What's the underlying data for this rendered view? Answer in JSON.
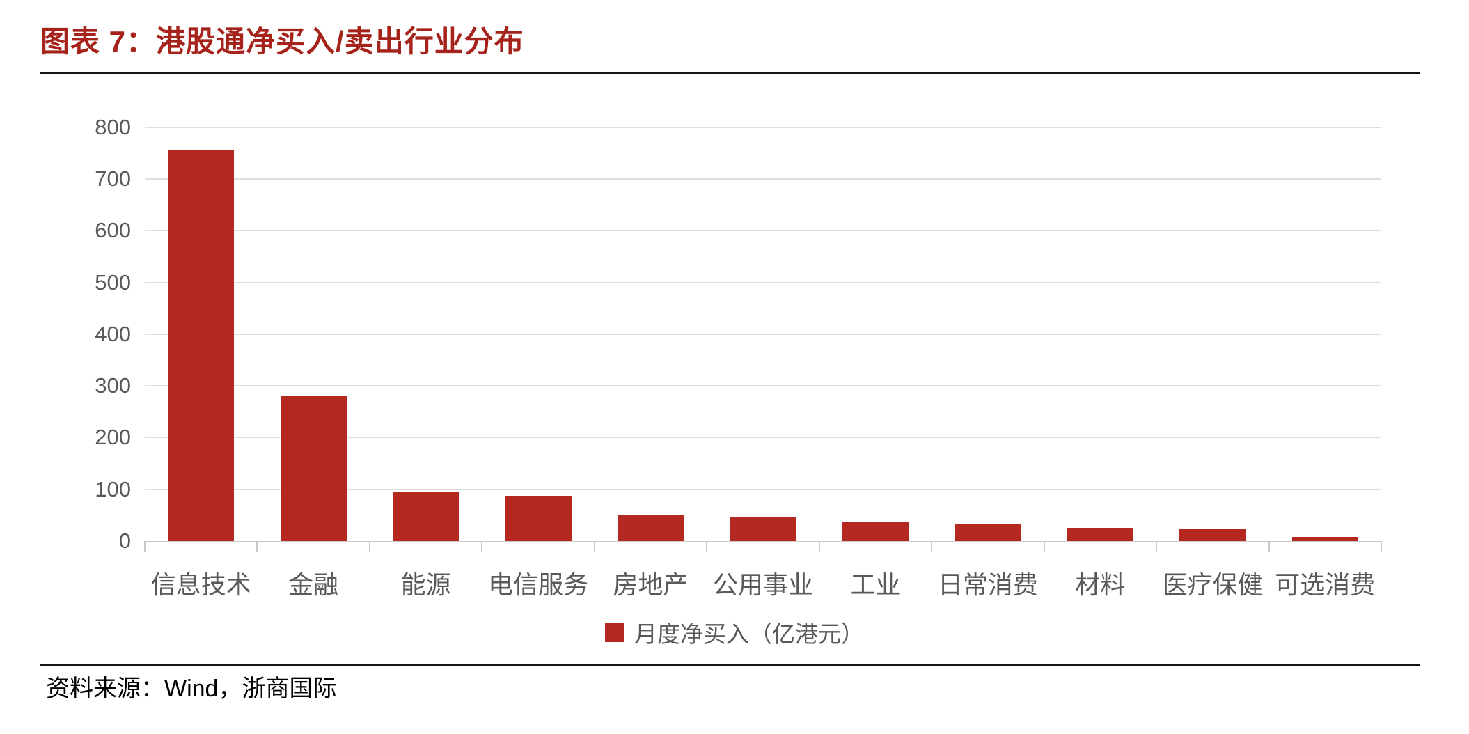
{
  "title": "图表 7：港股通净买入/卖出行业分布",
  "source_note": "资料来源：Wind，浙商国际",
  "legend": {
    "label": "月度净买入（亿港元）",
    "swatch_color": "#B4281F"
  },
  "colors": {
    "title_red": "#A6231B",
    "bar_red": "#B4281F",
    "axis_text_gray": "#595959",
    "gridline_gray": "#DEDEDE",
    "axis_line_gray": "#C9C9C9",
    "divider_black": "#141414"
  },
  "chart_data": {
    "type": "bar",
    "title": "港股通净买入/卖出行业分布",
    "categories": [
      "信息技术",
      "金融",
      "能源",
      "电信服务",
      "房地产",
      "公用事业",
      "工业",
      "日常消费",
      "材料",
      "医疗保健",
      "可选消费"
    ],
    "values": [
      755,
      280,
      95,
      88,
      50,
      47,
      38,
      32,
      25,
      23,
      8
    ],
    "series_name": "月度净买入（亿港元）",
    "unit": "亿港元",
    "xlabel": "",
    "ylabel": "",
    "ylim": [
      0,
      800
    ],
    "yticks": [
      0,
      100,
      200,
      300,
      400,
      500,
      600,
      700,
      800
    ],
    "grid": true,
    "bar_color": "#B4281F",
    "legend_position": "bottom"
  }
}
